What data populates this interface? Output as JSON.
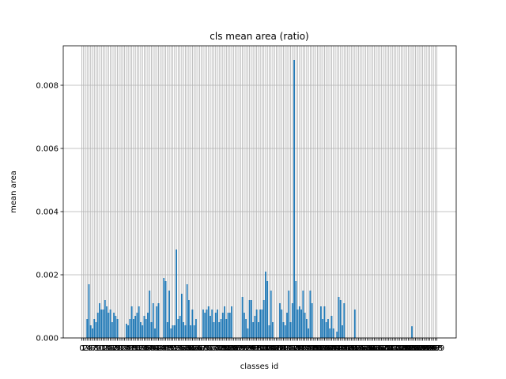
{
  "chart_data": {
    "type": "bar",
    "title": "cls mean area (ratio)",
    "xlabel": "classes id",
    "ylabel": "mean area",
    "x": [
      0,
      1,
      2,
      3,
      4,
      5,
      6,
      7,
      8,
      9,
      10,
      11,
      12,
      13,
      14,
      15,
      16,
      17,
      18,
      19,
      20,
      21,
      22,
      23,
      24,
      25,
      26,
      27,
      28,
      29,
      30,
      31,
      32,
      33,
      34,
      35,
      36,
      37,
      38,
      39,
      40,
      41,
      42,
      43,
      44,
      45,
      46,
      47,
      48,
      49,
      50,
      51,
      52,
      53,
      54,
      55,
      56,
      57,
      58,
      59,
      60,
      61,
      62,
      63,
      64,
      65,
      66,
      67,
      68,
      69,
      70,
      71,
      72,
      73,
      74,
      75,
      76,
      77,
      78,
      79,
      80,
      81,
      82,
      83,
      84,
      85,
      86,
      87,
      88,
      89,
      90,
      91,
      92,
      93,
      94,
      95,
      96,
      97,
      98,
      99,
      100,
      101,
      102,
      103,
      104,
      105,
      106,
      107,
      108,
      109,
      110,
      111,
      112,
      113,
      114,
      115,
      116,
      117,
      118,
      119,
      120,
      121,
      122,
      123,
      124,
      125,
      126,
      127,
      128,
      129,
      130,
      131,
      132,
      133,
      134,
      135,
      136,
      137,
      138,
      139,
      140,
      141,
      142,
      143,
      144,
      145,
      146,
      147,
      148,
      149,
      150,
      151,
      152,
      153,
      154,
      155,
      156,
      157,
      158,
      159,
      160,
      161,
      162,
      163,
      164,
      165,
      166,
      167,
      168,
      169,
      170,
      171,
      172,
      173,
      174,
      175,
      176,
      177,
      178,
      179,
      180,
      181,
      182,
      183,
      184,
      185,
      186,
      187,
      188,
      189,
      190,
      191,
      192,
      193,
      194,
      195,
      196,
      197,
      198,
      199
    ],
    "values": [
      0,
      0,
      0,
      0.0006,
      0.0017,
      0.0004,
      0.0003,
      0.0006,
      0.0005,
      0.0008,
      0.0011,
      0.0009,
      0.0009,
      0.0012,
      0.001,
      0.0008,
      0.0009,
      0.0005,
      0.0008,
      0.0007,
      0.0006,
      0,
      0,
      0,
      0,
      0.00045,
      0.0004,
      0.0006,
      0.001,
      0.0006,
      0.0007,
      0.0008,
      0.001,
      0.0005,
      0.0004,
      0.0007,
      0.0006,
      0.0008,
      0.0015,
      0.0005,
      0.0011,
      0.0003,
      0.001,
      0.0011,
      0,
      0,
      0.0019,
      0.0018,
      0.0005,
      0.0015,
      0.0003,
      0.0004,
      0.0004,
      0.0028,
      0.0006,
      0.0007,
      0.0014,
      0.0005,
      0.0004,
      0.0017,
      0.0012,
      0.0004,
      0.0009,
      0.0004,
      0.0006,
      0,
      0,
      0,
      0.0009,
      0.0008,
      0.0009,
      0.001,
      0.0007,
      0.0009,
      0.0005,
      0.0008,
      0.0009,
      0.0005,
      0.0006,
      0.0008,
      0.001,
      0.0006,
      0.0008,
      0.0008,
      0.001,
      0,
      0,
      0,
      0,
      0,
      0.0013,
      0.0008,
      0.0006,
      0.0003,
      0.0012,
      0.0012,
      0.0005,
      0.0007,
      0.0009,
      0.0005,
      0.0009,
      0.0009,
      0.0012,
      0.0021,
      0.0018,
      0.0004,
      0.0015,
      0.0005,
      0,
      0,
      0,
      0.0011,
      0.0009,
      0.0005,
      0.0004,
      0.0008,
      0.0015,
      0.0005,
      0.0011,
      0.0088,
      0.0018,
      0.0009,
      0.001,
      0.0009,
      0.0015,
      0.0008,
      0.0006,
      0.0003,
      0.0015,
      0.0011,
      0,
      0,
      0,
      0,
      0.001,
      0.0006,
      0.001,
      0.0005,
      0.0006,
      0.0003,
      0.0007,
      0.0003,
      0,
      0.0002,
      0.0013,
      0.0012,
      0.0004,
      0.0011,
      0,
      0,
      0,
      0,
      0,
      0.0009,
      0,
      0,
      0,
      0,
      0,
      0,
      0,
      0,
      0,
      0,
      0,
      0,
      0,
      0,
      0,
      0,
      0,
      0,
      0,
      0,
      0,
      0,
      0,
      0,
      0,
      0,
      0,
      0,
      0,
      0,
      0,
      0.00037,
      0,
      0,
      0,
      0,
      0,
      0,
      0,
      0,
      0,
      0,
      0,
      0,
      0,
      0
    ],
    "color": "#1f77b4",
    "xlim": [
      -10.39,
      209.79
    ],
    "ylim": [
      0,
      0.00925
    ],
    "yticks": [
      {
        "value": 0,
        "label": "0.000"
      },
      {
        "value": 0.002,
        "label": "0.002"
      },
      {
        "value": 0.004,
        "label": "0.004"
      },
      {
        "value": 0.006,
        "label": "0.006"
      },
      {
        "value": 0.008,
        "label": "0.008"
      }
    ],
    "grid": true
  }
}
